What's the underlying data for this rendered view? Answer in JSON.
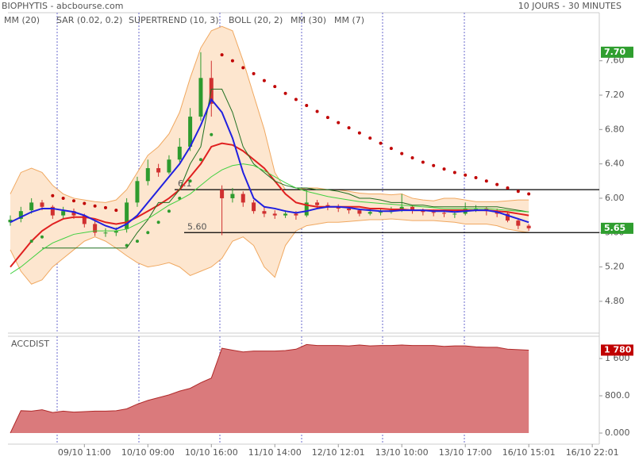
{
  "header": {
    "title": "BIOPHYTIS - abcbourse.com",
    "period": "10 JOURS - 30 MINUTES"
  },
  "chart_data": [
    {
      "type": "candlestick",
      "categories": [
        null,
        null,
        null,
        null,
        null,
        null,
        null,
        "09/10 11:00",
        null,
        null,
        null,
        null,
        null,
        "10/10 09:00",
        null,
        null,
        null,
        null,
        null,
        "10/10 16:00",
        null,
        null,
        null,
        null,
        null,
        "11/10 14:00",
        null,
        null,
        null,
        null,
        null,
        "12/10 12:01",
        null,
        null,
        null,
        null,
        null,
        "13/10 10:00",
        null,
        null,
        null,
        null,
        null,
        "13/10 17:00",
        null,
        null,
        null,
        null,
        null,
        "16/10 15:01",
        null,
        null,
        null,
        null,
        null,
        "16/10 22:01"
      ],
      "open": [
        5.72,
        5.76,
        5.86,
        5.95,
        5.9,
        5.8,
        5.85,
        5.8,
        5.7,
        5.6,
        5.6,
        5.64,
        5.95,
        6.2,
        6.35,
        6.3,
        6.45,
        6.6,
        6.95,
        7.4,
        6.1,
        6.0,
        6.05,
        5.95,
        5.85,
        5.82,
        5.8,
        5.82,
        5.8,
        5.95,
        5.92,
        5.9,
        5.88,
        5.86,
        5.82,
        5.84,
        5.84,
        5.86,
        5.9,
        5.86,
        5.84,
        5.83,
        5.82,
        5.82,
        5.88,
        5.88,
        5.85,
        5.82,
        5.74,
        5.68,
        null,
        null,
        null,
        null,
        null,
        null
      ],
      "high": [
        5.8,
        5.9,
        6.0,
        5.98,
        5.92,
        5.9,
        5.88,
        5.82,
        5.74,
        5.65,
        5.66,
        6.0,
        6.25,
        6.45,
        6.4,
        6.5,
        6.7,
        7.05,
        7.7,
        7.6,
        6.15,
        6.12,
        6.08,
        5.98,
        5.9,
        5.86,
        5.86,
        5.85,
        6.1,
        5.98,
        5.95,
        5.93,
        5.9,
        5.88,
        5.88,
        5.88,
        5.9,
        6.05,
        5.92,
        5.88,
        5.87,
        5.86,
        5.86,
        5.95,
        5.92,
        5.9,
        5.88,
        5.84,
        5.77,
        5.7,
        null,
        null,
        null,
        null,
        null,
        null
      ],
      "low": [
        5.68,
        5.72,
        5.82,
        5.86,
        5.76,
        5.76,
        5.76,
        5.66,
        5.56,
        5.55,
        5.56,
        5.6,
        5.9,
        6.15,
        6.25,
        6.28,
        6.42,
        6.55,
        6.9,
        6.95,
        5.57,
        5.95,
        5.9,
        5.82,
        5.78,
        5.76,
        5.77,
        5.75,
        5.78,
        5.88,
        5.86,
        5.84,
        5.82,
        5.79,
        5.8,
        5.8,
        5.82,
        5.84,
        5.82,
        5.8,
        5.79,
        5.78,
        5.77,
        5.8,
        5.84,
        5.8,
        5.78,
        5.72,
        5.64,
        5.62,
        null,
        null,
        null,
        null,
        null,
        null
      ],
      "close": [
        5.75,
        5.85,
        5.95,
        5.9,
        5.8,
        5.85,
        5.8,
        5.7,
        5.6,
        5.6,
        5.62,
        5.95,
        6.2,
        6.35,
        6.3,
        6.45,
        6.6,
        6.95,
        7.4,
        7.1,
        6.0,
        6.05,
        5.95,
        5.85,
        5.82,
        5.8,
        5.82,
        5.8,
        5.95,
        5.92,
        5.9,
        5.88,
        5.86,
        5.82,
        5.84,
        5.84,
        5.86,
        5.9,
        5.86,
        5.84,
        5.83,
        5.82,
        5.82,
        5.88,
        5.88,
        5.85,
        5.82,
        5.74,
        5.68,
        5.65,
        null,
        null,
        null,
        null,
        null,
        null
      ],
      "up_color": "#2e9b2e",
      "down_color": "#d03030",
      "series": [
        {
          "name": "MM (20)",
          "color": "#e02020",
          "style": "line",
          "width": 2,
          "values": [
            5.2,
            5.35,
            5.5,
            5.62,
            5.7,
            5.76,
            5.78,
            5.78,
            5.76,
            5.72,
            5.7,
            5.72,
            5.78,
            5.85,
            5.92,
            6.0,
            6.1,
            6.25,
            6.4,
            6.6,
            6.64,
            6.62,
            6.55,
            6.45,
            6.35,
            6.2,
            6.05,
            5.95,
            5.92,
            5.9,
            5.9,
            5.9,
            5.9,
            5.9,
            5.88,
            5.88,
            5.87,
            5.87,
            5.86,
            5.86,
            5.86,
            5.86,
            5.86,
            5.86,
            5.86,
            5.86,
            5.85,
            5.84,
            5.82,
            5.8,
            null,
            null,
            null,
            null,
            null,
            null
          ]
        },
        {
          "name": "SAR (0.02, 0.2)",
          "color": "#c00000",
          "color_below": "#2e9b2e",
          "style": "dots",
          "values": [
            null,
            null,
            5.5,
            5.55,
            6.03,
            6.0,
            5.97,
            5.94,
            5.91,
            5.89,
            5.86,
            5.45,
            5.5,
            5.6,
            5.72,
            5.85,
            6.0,
            6.2,
            6.45,
            6.74,
            7.67,
            7.6,
            7.52,
            7.45,
            7.37,
            7.3,
            7.22,
            7.15,
            7.08,
            7.01,
            6.94,
            6.88,
            6.82,
            6.76,
            6.7,
            6.64,
            6.58,
            6.52,
            6.47,
            6.42,
            6.38,
            6.34,
            6.3,
            6.27,
            6.24,
            6.2,
            6.16,
            6.12,
            6.08,
            6.05,
            null,
            null,
            null,
            null,
            null,
            null
          ]
        },
        {
          "name": "SUPERTREND (10, 3)",
          "color": "#207020",
          "style": "line",
          "width": 1,
          "values": [
            null,
            null,
            null,
            5.42,
            5.42,
            5.42,
            5.42,
            5.42,
            5.42,
            5.42,
            5.42,
            5.42,
            5.6,
            5.75,
            5.95,
            5.95,
            6.1,
            6.4,
            6.6,
            7.27,
            7.27,
            7.0,
            6.6,
            6.4,
            6.3,
            6.2,
            6.15,
            6.12,
            6.12,
            6.1,
            6.1,
            6.08,
            6.05,
            6.0,
            6.0,
            5.98,
            5.95,
            5.95,
            5.92,
            5.92,
            5.9,
            5.9,
            5.9,
            5.9,
            5.9,
            5.9,
            5.9,
            5.88,
            5.86,
            5.84,
            null,
            null,
            null,
            null,
            null,
            null
          ]
        },
        {
          "name": "BOLL (20, 2)",
          "color": "#f0a860",
          "fill": "#fde6cf",
          "style": "band",
          "upper": [
            6.05,
            6.3,
            6.35,
            6.3,
            6.15,
            6.05,
            6.0,
            5.98,
            5.96,
            5.95,
            5.98,
            6.1,
            6.3,
            6.5,
            6.6,
            6.75,
            7.0,
            7.4,
            7.75,
            7.95,
            8.0,
            7.95,
            7.6,
            7.2,
            6.8,
            6.3,
            6.1,
            6.1,
            6.12,
            6.12,
            6.1,
            6.1,
            6.08,
            6.06,
            6.05,
            6.05,
            6.04,
            6.05,
            6.0,
            5.98,
            5.97,
            6.0,
            6.0,
            5.98,
            5.96,
            5.96,
            5.96,
            5.97,
            5.98,
            5.98,
            null,
            null,
            null,
            null,
            null,
            null
          ],
          "lower": [
            5.4,
            5.15,
            5.0,
            5.05,
            5.2,
            5.3,
            5.4,
            5.5,
            5.55,
            5.5,
            5.42,
            5.33,
            5.25,
            5.2,
            5.22,
            5.25,
            5.2,
            5.1,
            5.15,
            5.2,
            5.3,
            5.5,
            5.55,
            5.45,
            5.2,
            5.08,
            5.45,
            5.62,
            5.68,
            5.7,
            5.72,
            5.72,
            5.73,
            5.74,
            5.75,
            5.75,
            5.76,
            5.75,
            5.74,
            5.74,
            5.74,
            5.73,
            5.72,
            5.7,
            5.7,
            5.7,
            5.68,
            5.64,
            5.62,
            5.6,
            null,
            null,
            null,
            null,
            null,
            null
          ]
        },
        {
          "name": "MM (30)",
          "color": "#40d040",
          "style": "line",
          "width": 1,
          "values": [
            5.12,
            5.2,
            5.3,
            5.4,
            5.48,
            5.53,
            5.58,
            5.6,
            5.62,
            5.62,
            5.62,
            5.64,
            5.7,
            5.76,
            5.84,
            5.92,
            5.98,
            6.05,
            6.15,
            6.25,
            6.33,
            6.38,
            6.4,
            6.38,
            6.32,
            6.25,
            6.18,
            6.12,
            6.08,
            6.05,
            6.02,
            6.0,
            5.98,
            5.96,
            5.95,
            5.94,
            5.93,
            5.92,
            5.91,
            5.9,
            5.89,
            5.88,
            5.88,
            5.88,
            5.88,
            5.88,
            5.87,
            5.86,
            5.85,
            5.84,
            null,
            null,
            null,
            null,
            null,
            null
          ]
        },
        {
          "name": "MM (7)",
          "color": "#2020e0",
          "style": "line",
          "width": 2,
          "values": [
            5.72,
            5.78,
            5.84,
            5.88,
            5.88,
            5.86,
            5.84,
            5.8,
            5.74,
            5.68,
            5.64,
            5.7,
            5.8,
            5.95,
            6.1,
            6.25,
            6.4,
            6.6,
            6.85,
            7.15,
            7.0,
            6.7,
            6.3,
            6.0,
            5.9,
            5.88,
            5.85,
            5.83,
            5.85,
            5.88,
            5.9,
            5.9,
            5.89,
            5.87,
            5.86,
            5.85,
            5.85,
            5.86,
            5.86,
            5.86,
            5.85,
            5.85,
            5.84,
            5.85,
            5.86,
            5.86,
            5.84,
            5.8,
            5.76,
            5.72,
            null,
            null,
            null,
            null,
            null,
            null
          ]
        }
      ],
      "ylim": [
        4.43,
        8.16
      ],
      "yticks": [
        {
          "value": 4.8,
          "label": "4.80"
        },
        {
          "value": 5.2,
          "label": "5.20"
        },
        {
          "value": 5.6,
          "label": "5.60"
        },
        {
          "value": 6.0,
          "label": "6.00"
        },
        {
          "value": 6.4,
          "label": "6.40"
        },
        {
          "value": 6.8,
          "label": "6.80"
        },
        {
          "value": 7.2,
          "label": "7.20"
        },
        {
          "value": 7.6,
          "label": "7.60"
        }
      ],
      "levels": [
        {
          "value": 6.1,
          "label": "6.1"
        },
        {
          "value": 5.6,
          "label": "5.60"
        }
      ],
      "last_labels": [
        {
          "value": 7.7,
          "label": "7.70"
        },
        {
          "value": 5.65,
          "label": "5.65"
        }
      ],
      "last_label_color": "#2f9e2f"
    },
    {
      "type": "area",
      "title": "ACCDIST",
      "values": [
        0,
        480,
        470,
        500,
        440,
        470,
        450,
        460,
        470,
        470,
        480,
        520,
        620,
        700,
        760,
        820,
        900,
        960,
        1080,
        1180,
        1820,
        1780,
        1740,
        1760,
        1760,
        1760,
        1770,
        1800,
        1900,
        1880,
        1880,
        1880,
        1870,
        1890,
        1870,
        1880,
        1880,
        1890,
        1880,
        1880,
        1880,
        1860,
        1870,
        1870,
        1850,
        1840,
        1840,
        1800,
        1790,
        1780,
        null,
        null,
        null,
        null,
        null,
        null
      ],
      "color": "#da7a7c",
      "line_color": "#b02a2a",
      "ylim": [
        -238,
        2060
      ],
      "yticks": [
        {
          "value": 0,
          "label": "0.000"
        },
        {
          "value": 800,
          "label": "800.0"
        },
        {
          "value": 1600,
          "label": "1 600"
        }
      ],
      "last_label": {
        "value": 1780,
        "label": "1 780"
      },
      "last_label_color": "#c00000"
    }
  ]
}
